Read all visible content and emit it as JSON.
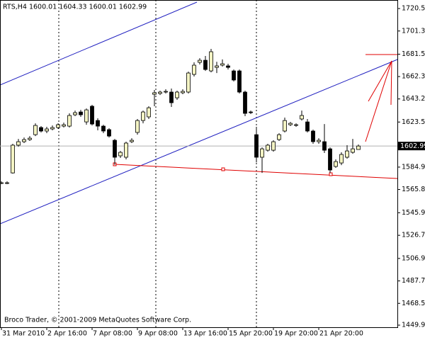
{
  "chart_data": {
    "type": "candlestick",
    "title": "RTS,H4  1600.01 1604.33 1600.01 1602.99",
    "footer": "Broco Trader, © 2001-2009 MetaQuotes Software Corp.",
    "last_price": 1602.99,
    "up_color": "#f4f4c4",
    "down_color": "#000000",
    "categories": [
      "31 Mar 2010",
      null,
      null,
      null,
      null,
      null,
      null,
      null,
      "2 Apr 16:00",
      null,
      null,
      null,
      null,
      null,
      null,
      null,
      "7 Apr 08:00",
      null,
      null,
      null,
      null,
      null,
      null,
      null,
      "9 Apr 08:00",
      null,
      null,
      null,
      null,
      null,
      null,
      null,
      "13 Apr 16:00",
      null,
      null,
      null,
      null,
      null,
      null,
      null,
      "15 Apr 20:00",
      null,
      null,
      null,
      null,
      null,
      null,
      null,
      "19 Apr 20:00",
      null,
      null,
      null,
      null,
      null,
      null,
      null,
      "21 Apr 20:00",
      null,
      null,
      null,
      null,
      null,
      null,
      null
    ],
    "open": [
      1571.6,
      1571.6,
      1580.0,
      1603.7,
      1606.7,
      1608.5,
      1612.7,
      1618.8,
      1615.8,
      1617.6,
      1618.8,
      1620.0,
      1620.0,
      1629.7,
      1632.1,
      1623.6,
      1637.0,
      1624.8,
      1620.0,
      1617.0,
      1607.9,
      1594.6,
      1593.4,
      1606.7,
      1614.6,
      1624.8,
      1627.9,
      1647.2,
      1647.9,
      1649.1,
      1649.1,
      1644.2,
      1648.5,
      1649.1,
      1664.2,
      1674.5,
      1676.3,
      1667.2,
      1670.2,
      1672.1,
      1671.5,
      1667.2,
      1667.2,
      1649.1,
      1632.1,
      1612.7,
      1593.4,
      1599.4,
      1599.4,
      1608.5,
      1615.8,
      1621.2,
      1620.6,
      1626.1,
      1623.6,
      1615.8,
      1606.7,
      1606.7,
      1600.6,
      1585.5,
      1588.5,
      1593.4,
      1597.6,
      1600.01
    ],
    "high": [
      1572.8,
      1572.8,
      1604.9,
      1609.1,
      1610.3,
      1611.5,
      1622.4,
      1620.0,
      1619.4,
      1620.6,
      1622.4,
      1623.0,
      1630.9,
      1633.3,
      1633.9,
      1635.1,
      1638.2,
      1626.7,
      1621.2,
      1618.2,
      1609.1,
      1598.8,
      1606.7,
      1609.7,
      1626.1,
      1633.3,
      1637.0,
      1650.9,
      1650.3,
      1651.5,
      1652.1,
      1650.3,
      1651.5,
      1666.6,
      1674.5,
      1678.1,
      1680.0,
      1686.0,
      1675.0,
      1677.0,
      1673.3,
      1668.4,
      1668.4,
      1650.3,
      1633.3,
      1619.4,
      1601.8,
      1604.9,
      1607.9,
      1613.9,
      1627.3,
      1623.6,
      1622.4,
      1633.3,
      1626.1,
      1617.0,
      1609.7,
      1621.8,
      1601.8,
      1591.6,
      1597.6,
      1603.7,
      1609.1,
      1604.33
    ],
    "low": [
      1570.4,
      1570.4,
      1579.4,
      1602.5,
      1605.5,
      1607.3,
      1611.5,
      1614.6,
      1614.0,
      1616.4,
      1617.6,
      1618.8,
      1618.8,
      1628.5,
      1627.9,
      1621.2,
      1620.6,
      1616.4,
      1614.0,
      1610.3,
      1587.0,
      1592.8,
      1591.6,
      1605.5,
      1612.7,
      1622.4,
      1626.1,
      1637.0,
      1646.6,
      1647.9,
      1636.4,
      1642.4,
      1647.3,
      1647.9,
      1662.4,
      1672.7,
      1667.2,
      1666.0,
      1665.4,
      1670.9,
      1668.4,
      1658.2,
      1647.9,
      1628.5,
      1630.3,
      1589.0,
      1580.0,
      1598.2,
      1598.2,
      1607.3,
      1614.6,
      1620.0,
      1619.4,
      1624.8,
      1614.6,
      1604.9,
      1604.9,
      1597.0,
      1580.0,
      1584.3,
      1586.7,
      1592.2,
      1596.4,
      1600.01
    ],
    "close": [
      1571.6,
      1571.6,
      1603.7,
      1606.7,
      1608.5,
      1609.7,
      1620.6,
      1615.8,
      1617.6,
      1618.8,
      1621.2,
      1621.2,
      1629.1,
      1631.5,
      1629.7,
      1633.9,
      1621.8,
      1620.0,
      1615.8,
      1611.5,
      1593.4,
      1597.6,
      1605.5,
      1607.9,
      1624.8,
      1632.1,
      1635.7,
      1648.5,
      1649.1,
      1649.7,
      1640.0,
      1649.1,
      1649.7,
      1665.4,
      1672.1,
      1676.3,
      1668.4,
      1683.6,
      1671.5,
      1673.3,
      1670.2,
      1659.4,
      1649.1,
      1630.9,
      1631.5,
      1593.4,
      1600.6,
      1603.7,
      1606.7,
      1612.7,
      1624.8,
      1622.4,
      1621.2,
      1629.1,
      1615.8,
      1606.7,
      1607.9,
      1599.4,
      1582.5,
      1589.7,
      1595.8,
      1598.8,
      1600.6,
      1602.99
    ],
    "ylim": [
      1448.1,
      1727.8
    ],
    "yticks": [
      {
        "value": 1720.5,
        "label": "1720.50"
      },
      1701.31,
      {
        "value": 1681.5,
        "label": "1681.50"
      },
      1662.37,
      1643.23,
      {
        "value": 1623.5,
        "label": "1623.50"
      },
      1584.97,
      1565.83,
      1545.99,
      {
        "value": 1526.7,
        "label": "1526.70"
      },
      1506.91,
      {
        "value": 1487.7,
        "label": "1487.70"
      },
      1468.53,
      {
        "value": 1449.9,
        "label": "1449.90"
      }
    ]
  }
}
